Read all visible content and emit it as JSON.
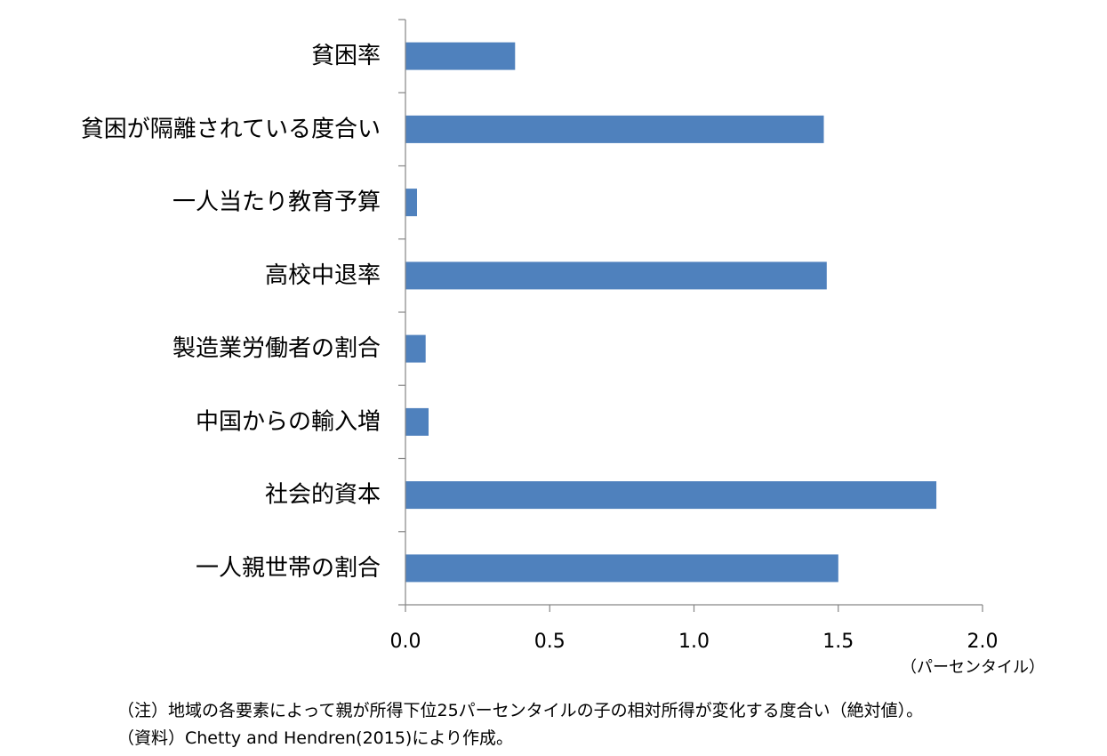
{
  "chart_data": {
    "type": "bar",
    "orientation": "horizontal",
    "categories": [
      "貧困率",
      "貧困が隔離されている度合い",
      "一人当たり教育予算",
      "高校中退率",
      "製造業労働者の割合",
      "中国からの輸入増",
      "社会的資本",
      "一人親世帯の割合"
    ],
    "values": [
      0.38,
      1.45,
      0.04,
      1.46,
      0.07,
      0.08,
      1.84,
      1.5
    ],
    "xlim": [
      0,
      2.0
    ],
    "xticks": [
      "0.0",
      "0.5",
      "1.0",
      "1.5",
      "2.0"
    ],
    "xtick_values": [
      0,
      0.5,
      1.0,
      1.5,
      2.0
    ],
    "xlabel": "（パーセンタイル）",
    "title": "",
    "grid": false,
    "color": "#4f81bd"
  },
  "notes": [
    "（注）地域の各要素によって親が所得下位25パーセンタイルの子の相対所得が変化する度合い（絶対値）。",
    "（資料）Chetty and Hendren(2015)により作成。"
  ]
}
